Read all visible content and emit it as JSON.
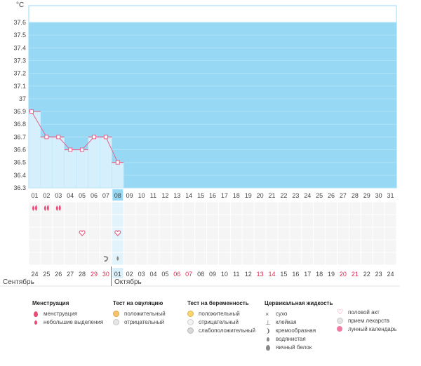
{
  "unit": "°C",
  "y_ticks": [
    "36.3",
    "36.4",
    "36.5",
    "36.6",
    "36.7",
    "36.8",
    "36.9",
    "37",
    "37.1",
    "37.2",
    "37.3",
    "37.4",
    "37.5",
    "37.6"
  ],
  "cycle_days": [
    "01",
    "02",
    "03",
    "04",
    "05",
    "06",
    "07",
    "08",
    "09",
    "10",
    "11",
    "12",
    "13",
    "14",
    "15",
    "16",
    "17",
    "18",
    "19",
    "20",
    "21",
    "22",
    "23",
    "24",
    "25",
    "26",
    "27",
    "28",
    "29",
    "30",
    "31"
  ],
  "current_day_index": 7,
  "dates": [
    {
      "d": "24",
      "weekend": false
    },
    {
      "d": "25",
      "weekend": false
    },
    {
      "d": "26",
      "weekend": false
    },
    {
      "d": "27",
      "weekend": false
    },
    {
      "d": "28",
      "weekend": false
    },
    {
      "d": "29",
      "weekend": true
    },
    {
      "d": "30",
      "weekend": true
    },
    {
      "d": "01",
      "weekend": false
    },
    {
      "d": "02",
      "weekend": false
    },
    {
      "d": "03",
      "weekend": false
    },
    {
      "d": "04",
      "weekend": false
    },
    {
      "d": "05",
      "weekend": false
    },
    {
      "d": "06",
      "weekend": true
    },
    {
      "d": "07",
      "weekend": true
    },
    {
      "d": "08",
      "weekend": false
    },
    {
      "d": "09",
      "weekend": false
    },
    {
      "d": "10",
      "weekend": false
    },
    {
      "d": "11",
      "weekend": false
    },
    {
      "d": "12",
      "weekend": false
    },
    {
      "d": "13",
      "weekend": true
    },
    {
      "d": "14",
      "weekend": true
    },
    {
      "d": "15",
      "weekend": false
    },
    {
      "d": "16",
      "weekend": false
    },
    {
      "d": "17",
      "weekend": false
    },
    {
      "d": "18",
      "weekend": false
    },
    {
      "d": "19",
      "weekend": false
    },
    {
      "d": "20",
      "weekend": true
    },
    {
      "d": "21",
      "weekend": true
    },
    {
      "d": "22",
      "weekend": false
    },
    {
      "d": "23",
      "weekend": false
    },
    {
      "d": "24",
      "weekend": false
    }
  ],
  "month_left": "Сентябрь",
  "month_right": "Октябрь",
  "chart_data": {
    "type": "line",
    "x": [
      "01",
      "02",
      "03",
      "04",
      "05",
      "06",
      "07",
      "08"
    ],
    "values": [
      36.9,
      36.7,
      36.7,
      36.6,
      36.6,
      36.7,
      36.7,
      36.5
    ],
    "ylim": [
      36.3,
      37.6
    ],
    "ylabel": "°C",
    "grid": true
  },
  "markers": [
    {
      "day_index": 0,
      "row": 0,
      "icon": "menstruation-drop-icon"
    },
    {
      "day_index": 1,
      "row": 0,
      "icon": "menstruation-drop-icon"
    },
    {
      "day_index": 2,
      "row": 0,
      "icon": "menstruation-drop-icon"
    },
    {
      "day_index": 4,
      "row": 2,
      "icon": "heart-icon"
    },
    {
      "day_index": 7,
      "row": 2,
      "icon": "heart-icon"
    },
    {
      "day_index": 6,
      "row": 4,
      "icon": "creamy-icon"
    },
    {
      "day_index": 7,
      "row": 4,
      "icon": "watery-drop-icon"
    }
  ],
  "legend": {
    "menstruation": {
      "title": "Менструация",
      "items": [
        "менструация",
        "небольшие выделения"
      ]
    },
    "ovulation": {
      "title": "Тест на овуляцию",
      "items": [
        "положительный",
        "отрицательный"
      ]
    },
    "pregnancy": {
      "title": "Тест на беременность",
      "items": [
        "положительный",
        "отрицательный",
        "слабоположительный"
      ]
    },
    "cervical": {
      "title": "Цервикальная жидкость",
      "items": [
        "сухо",
        "клейкая",
        "кремообразная",
        "водянистая",
        "яичный белок"
      ]
    },
    "other": {
      "items": [
        "половой акт",
        "прием лекарств",
        "лунный календарь"
      ]
    }
  },
  "colors": {
    "chart_bg": "#97d9f5",
    "bar_fill": "#d5f0fc",
    "line": "#e8628a",
    "weekend": "#e0264f",
    "current": "#97d9f5"
  }
}
